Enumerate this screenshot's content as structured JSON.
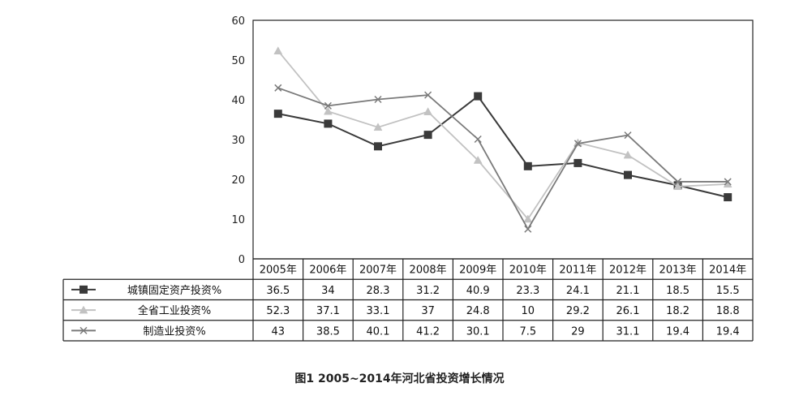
{
  "chart_data": {
    "type": "line",
    "categories": [
      "2005年",
      "2006年",
      "2007年",
      "2008年",
      "2009年",
      "2010年",
      "2011年",
      "2012年",
      "2013年",
      "2014年"
    ],
    "ylim": [
      0,
      60
    ],
    "yticks": [
      0,
      10,
      20,
      30,
      40,
      50,
      60
    ],
    "grid": false,
    "legend_placement": "data-table-left",
    "series": [
      {
        "name": "城镇固定资产投资%",
        "marker": "square",
        "color": "#3a3a3a",
        "values": [
          36.5,
          34,
          28.3,
          31.2,
          40.9,
          23.3,
          24.1,
          21.1,
          18.5,
          15.5
        ],
        "labels": [
          "36.5",
          "34",
          "28.3",
          "31.2",
          "40.9",
          "23.3",
          "24.1",
          "21.1",
          "18.5",
          "15.5"
        ]
      },
      {
        "name": "全省工业投资%",
        "marker": "triangle",
        "color": "#c2c2c2",
        "values": [
          52.3,
          37.1,
          33.1,
          37,
          24.8,
          10,
          29.2,
          26.1,
          18.2,
          18.8
        ],
        "labels": [
          "52.3",
          "37.1",
          "33.1",
          "37",
          "24.8",
          "10",
          "29.2",
          "26.1",
          "18.2",
          "18.8"
        ]
      },
      {
        "name": "制造业投资%",
        "marker": "x",
        "color": "#7a7a7a",
        "values": [
          43,
          38.5,
          40.1,
          41.2,
          30.1,
          7.5,
          29,
          31.1,
          19.4,
          19.4
        ],
        "labels": [
          "43",
          "38.5",
          "40.1",
          "41.2",
          "30.1",
          "7.5",
          "29",
          "31.1",
          "19.4",
          "19.4"
        ]
      }
    ]
  },
  "caption": "图1   2005~2014年河北省投资增长情况"
}
